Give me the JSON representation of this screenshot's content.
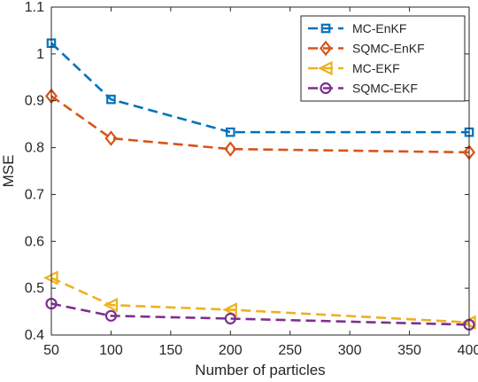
{
  "chart_data": {
    "type": "line",
    "xlabel": "Number of particles",
    "ylabel": "MSE",
    "xlim": [
      50,
      400
    ],
    "ylim": [
      0.4,
      1.1
    ],
    "x_ticks": [
      "50",
      "100",
      "150",
      "200",
      "250",
      "300",
      "350",
      "400"
    ],
    "y_ticks": [
      "0.4",
      "0.5",
      "0.6",
      "0.7",
      "0.8",
      "0.9",
      "1",
      "1.1"
    ],
    "grid": false,
    "legend_position": "top-right",
    "x": [
      50,
      100,
      200,
      400
    ],
    "series": [
      {
        "name": "MC-EnKF",
        "values": [
          1.023,
          0.903,
          0.833,
          0.833
        ],
        "color": "#0072BD",
        "marker": "square",
        "line": "dashed"
      },
      {
        "name": "SQMC-EnKF",
        "values": [
          0.91,
          0.82,
          0.797,
          0.79
        ],
        "color": "#D95319",
        "marker": "diamond",
        "line": "dashed"
      },
      {
        "name": "MC-EKF",
        "values": [
          0.522,
          0.464,
          0.454,
          0.427
        ],
        "color": "#EDB120",
        "marker": "triangle-left",
        "line": "dashed"
      },
      {
        "name": "SQMC-EKF",
        "values": [
          0.467,
          0.441,
          0.435,
          0.422
        ],
        "color": "#7E2F8E",
        "marker": "circle",
        "line": "dashed"
      }
    ]
  }
}
